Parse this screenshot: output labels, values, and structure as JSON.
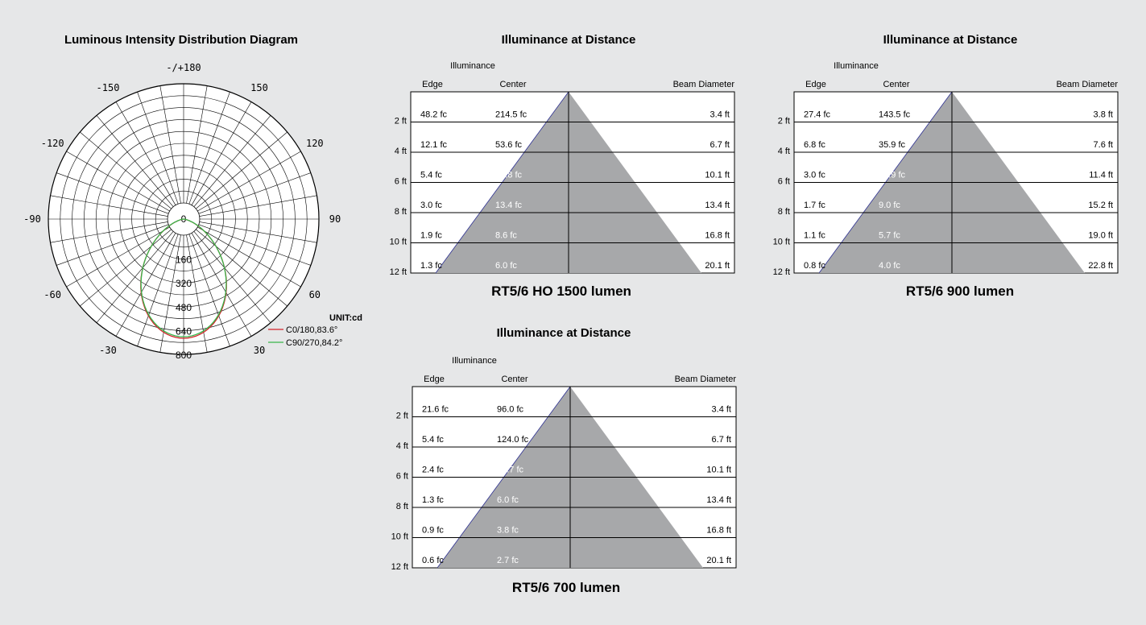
{
  "colors": {
    "background": "#e6e7e8",
    "cone": "#a7a8aa",
    "c0": "#d2232a",
    "c90": "#39b54a",
    "cone_edge": "#2e3192"
  },
  "chart_data": [
    {
      "type": "polar",
      "title": "Luminous Intensity Distribution Diagram",
      "unit_label": "UNIT:cd",
      "angle_labels": [
        "-/+180",
        "150",
        "120",
        "90",
        "60",
        "30",
        "-30",
        "-60",
        "-90",
        "-120",
        "-150"
      ],
      "radial_ticks": [
        0,
        160,
        320,
        480,
        640,
        800
      ],
      "rlim": [
        0,
        800
      ],
      "series": [
        {
          "name": "C0/180,83.6°",
          "color": "#d2232a",
          "peak_cd": 800,
          "beam_angle_deg": 83.6
        },
        {
          "name": "C90/270,84.2°",
          "color": "#39b54a",
          "peak_cd": 790,
          "beam_angle_deg": 84.2
        }
      ]
    },
    {
      "type": "table",
      "title": "Illuminance at Distance",
      "subtitle": "RT5/6 HO 1500 lumen",
      "header_group": "Illuminance",
      "columns": [
        "Edge",
        "Center",
        "Beam Diameter"
      ],
      "rows": [
        {
          "distance": "2 ft",
          "edge": "48.2 fc",
          "center": "214.5 fc",
          "diameter": "3.4 ft"
        },
        {
          "distance": "4 ft",
          "edge": "12.1 fc",
          "center": "53.6 fc",
          "diameter": "6.7 ft"
        },
        {
          "distance": "6 ft",
          "edge": "5.4 fc",
          "center": "23.8 fc",
          "diameter": "10.1 ft"
        },
        {
          "distance": "8 ft",
          "edge": "3.0 fc",
          "center": "13.4 fc",
          "diameter": "13.4 ft"
        },
        {
          "distance": "10 ft",
          "edge": "1.9 fc",
          "center": "8.6 fc",
          "diameter": "16.8 ft"
        },
        {
          "distance": "12 ft",
          "edge": "1.3 fc",
          "center": "6.0 fc",
          "diameter": "20.1 ft"
        }
      ]
    },
    {
      "type": "table",
      "title": "Illuminance at Distance",
      "subtitle": "RT5/6 900 lumen",
      "header_group": "Illuminance",
      "columns": [
        "Edge",
        "Center",
        "Beam Diameter"
      ],
      "rows": [
        {
          "distance": "2 ft",
          "edge": "27.4 fc",
          "center": "143.5 fc",
          "diameter": "3.8 ft"
        },
        {
          "distance": "4 ft",
          "edge": "6.8 fc",
          "center": "35.9 fc",
          "diameter": "7.6 ft"
        },
        {
          "distance": "6 ft",
          "edge": "3.0 fc",
          "center": "15.9 fc",
          "diameter": "11.4 ft"
        },
        {
          "distance": "8 ft",
          "edge": "1.7 fc",
          "center": "9.0 fc",
          "diameter": "15.2 ft"
        },
        {
          "distance": "10 ft",
          "edge": "1.1 fc",
          "center": "5.7 fc",
          "diameter": "19.0 ft"
        },
        {
          "distance": "12 ft",
          "edge": "0.8 fc",
          "center": "4.0 fc",
          "diameter": "22.8 ft"
        }
      ]
    },
    {
      "type": "table",
      "title": "Illuminance at Distance",
      "subtitle": "RT5/6 700 lumen",
      "header_group": "Illuminance",
      "columns": [
        "Edge",
        "Center",
        "Beam Diameter"
      ],
      "rows": [
        {
          "distance": "2 ft",
          "edge": "21.6 fc",
          "center": "96.0 fc",
          "diameter": "3.4 ft"
        },
        {
          "distance": "4 ft",
          "edge": "5.4 fc",
          "center": "124.0 fc",
          "diameter": "6.7 ft"
        },
        {
          "distance": "6 ft",
          "edge": "2.4 fc",
          "center": "10.7 fc",
          "diameter": "10.1 ft"
        },
        {
          "distance": "8 ft",
          "edge": "1.3 fc",
          "center": "6.0 fc",
          "diameter": "13.4 ft"
        },
        {
          "distance": "10 ft",
          "edge": "0.9 fc",
          "center": "3.8 fc",
          "diameter": "16.8 ft"
        },
        {
          "distance": "12 ft",
          "edge": "0.6 fc",
          "center": "2.7 fc",
          "diameter": "20.1 ft"
        }
      ]
    }
  ]
}
